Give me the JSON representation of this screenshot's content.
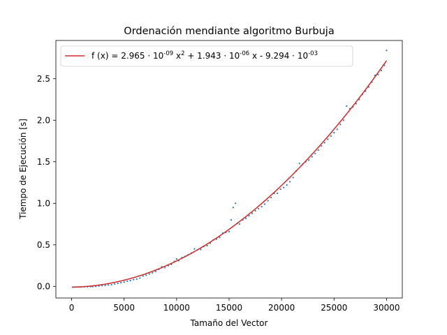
{
  "chart_data": {
    "type": "scatter",
    "title": "Ordenación mendiante algoritmo Burbuja",
    "xlabel": "Tamaño del Vector",
    "ylabel": "Tiempo de Ejecución [s]",
    "xlim": [
      -1500,
      31500
    ],
    "ylim": [
      -0.14,
      2.96
    ],
    "xticks": [
      0,
      5000,
      10000,
      15000,
      20000,
      25000,
      30000
    ],
    "yticks": [
      0.0,
      0.5,
      1.0,
      1.5,
      2.0,
      2.5
    ],
    "xtick_labels": [
      "0",
      "5000",
      "10000",
      "15000",
      "20000",
      "25000",
      "30000"
    ],
    "ytick_labels": [
      "0.0",
      "0.5",
      "1.0",
      "1.5",
      "2.0",
      "2.5"
    ],
    "grid": false,
    "legend_position": "top-left",
    "fit": {
      "label": "f (x) = 2.965 · 10^-09 x^2 + 1.943 · 10^-06 x - 9.294 · 10^-03",
      "a": 2.965e-09,
      "b": 1.943e-06,
      "c": -0.009294,
      "color": "#d62728"
    },
    "scatter_color": "#1f77b4",
    "series": [
      {
        "points": [
          [
            100,
            -0.009
          ],
          [
            300,
            -0.008
          ],
          [
            500,
            -0.008
          ],
          [
            700,
            -0.007
          ],
          [
            900,
            -0.007
          ],
          [
            1200,
            -0.006
          ],
          [
            1500,
            -0.005
          ],
          [
            1800,
            -0.003
          ],
          [
            2000,
            -0.002
          ],
          [
            2300,
            0.0
          ],
          [
            2600,
            0.005
          ],
          [
            2900,
            0.009
          ],
          [
            3200,
            0.012
          ],
          [
            3500,
            0.017
          ],
          [
            3800,
            0.02
          ],
          [
            4100,
            0.03
          ],
          [
            4400,
            0.036
          ],
          [
            4700,
            0.045
          ],
          [
            5000,
            0.051
          ],
          [
            5300,
            0.063
          ],
          [
            5600,
            0.07
          ],
          [
            5900,
            0.082
          ],
          [
            6200,
            0.088
          ],
          [
            6500,
            0.1
          ],
          [
            6800,
            0.125
          ],
          [
            7100,
            0.135
          ],
          [
            7400,
            0.15
          ],
          [
            7700,
            0.163
          ],
          [
            8000,
            0.18
          ],
          [
            8300,
            0.205
          ],
          [
            8600,
            0.235
          ],
          [
            8900,
            0.225
          ],
          [
            9200,
            0.25
          ],
          [
            9500,
            0.265
          ],
          [
            9800,
            0.3
          ],
          [
            10000,
            0.33
          ],
          [
            10200,
            0.31
          ],
          [
            10500,
            0.345
          ],
          [
            10800,
            0.36
          ],
          [
            11100,
            0.38
          ],
          [
            11400,
            0.4
          ],
          [
            11700,
            0.45
          ],
          [
            12000,
            0.44
          ],
          [
            12300,
            0.445
          ],
          [
            12600,
            0.48
          ],
          [
            12900,
            0.49
          ],
          [
            13200,
            0.52
          ],
          [
            13500,
            0.56
          ],
          [
            13800,
            0.57
          ],
          [
            14100,
            0.59
          ],
          [
            14400,
            0.64
          ],
          [
            14700,
            0.65
          ],
          [
            15000,
            0.66
          ],
          [
            15200,
            0.8
          ],
          [
            15400,
            0.95
          ],
          [
            15600,
            1.0
          ],
          [
            15800,
            0.76
          ],
          [
            16000,
            0.75
          ],
          [
            16300,
            0.8
          ],
          [
            16600,
            0.82
          ],
          [
            16900,
            0.85
          ],
          [
            17200,
            0.88
          ],
          [
            17500,
            0.91
          ],
          [
            17800,
            0.935
          ],
          [
            18100,
            0.96
          ],
          [
            18400,
            0.99
          ],
          [
            18700,
            1.03
          ],
          [
            19000,
            1.07
          ],
          [
            19300,
            1.12
          ],
          [
            19600,
            1.12
          ],
          [
            19900,
            1.17
          ],
          [
            20200,
            1.19
          ],
          [
            20500,
            1.22
          ],
          [
            20800,
            1.26
          ],
          [
            21100,
            1.31
          ],
          [
            21400,
            1.39
          ],
          [
            21700,
            1.48
          ],
          [
            22000,
            1.47
          ],
          [
            22300,
            1.5
          ],
          [
            22600,
            1.52
          ],
          [
            22900,
            1.56
          ],
          [
            23200,
            1.6
          ],
          [
            23500,
            1.64
          ],
          [
            23800,
            1.69
          ],
          [
            24100,
            1.73
          ],
          [
            24400,
            1.77
          ],
          [
            24700,
            1.81
          ],
          [
            25000,
            1.85
          ],
          [
            25300,
            1.89
          ],
          [
            25600,
            1.95
          ],
          [
            25900,
            2.0
          ],
          [
            26200,
            2.17
          ],
          [
            26500,
            2.14
          ],
          [
            26800,
            2.16
          ],
          [
            27100,
            2.2
          ],
          [
            27400,
            2.25
          ],
          [
            27700,
            2.31
          ],
          [
            28000,
            2.35
          ],
          [
            28300,
            2.4
          ],
          [
            28600,
            2.46
          ],
          [
            28900,
            2.54
          ],
          [
            29200,
            2.55
          ],
          [
            29500,
            2.6
          ],
          [
            29800,
            2.66
          ],
          [
            30000,
            2.84
          ]
        ]
      }
    ]
  }
}
